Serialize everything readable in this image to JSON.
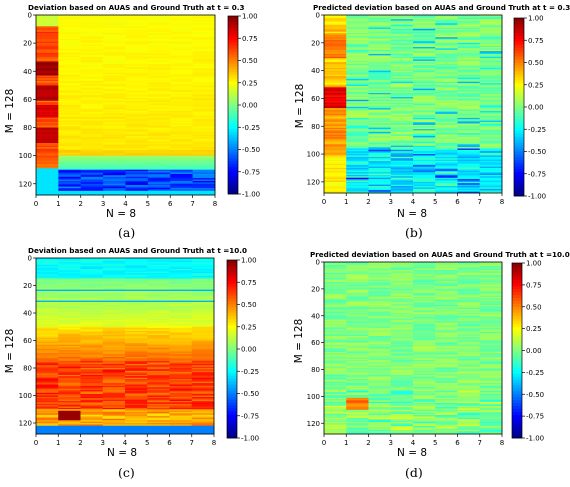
{
  "chart_data": [
    {
      "id": "a",
      "type": "heatmap",
      "title": "Deviation based on AUAS and Ground Truth at t = 0.3",
      "xlabel": "N = 8",
      "ylabel": "M = 128",
      "x_ticks": [
        "0",
        "1",
        "2",
        "3",
        "4",
        "5",
        "6",
        "7",
        "8"
      ],
      "y_ticks": [
        "0",
        "20",
        "40",
        "60",
        "80",
        "100",
        "120"
      ],
      "colorbar_ticks": [
        "1.00",
        "0.75",
        "0.50",
        "0.25",
        "0.00",
        "-0.25",
        "-0.50",
        "-0.75",
        "-1.00"
      ],
      "colorbar_range": [
        -1.0,
        1.0
      ],
      "colormap": "jet",
      "xlim": [
        0,
        8
      ],
      "ylim": [
        128,
        0
      ],
      "caption": "(a)"
    },
    {
      "id": "b",
      "type": "heatmap",
      "title": "Predicted deviation based on AUAS and Ground Truth at t = 0.3",
      "xlabel": "N = 8",
      "ylabel": "M = 128",
      "x_ticks": [
        "0",
        "1",
        "2",
        "3",
        "4",
        "5",
        "6",
        "7",
        "8"
      ],
      "y_ticks": [
        "0",
        "20",
        "40",
        "60",
        "80",
        "100",
        "120"
      ],
      "colorbar_ticks": [
        "1.00",
        "0.75",
        "0.50",
        "0.25",
        "0.00",
        "-0.25",
        "-0.50",
        "-0.75",
        "-1.00"
      ],
      "colorbar_range": [
        -1.0,
        1.0
      ],
      "colormap": "jet",
      "xlim": [
        0,
        8
      ],
      "ylim": [
        128,
        0
      ],
      "caption": "(b)"
    },
    {
      "id": "c",
      "type": "heatmap",
      "title": "Deviation based on AUAS and Ground Truth at t =10.0",
      "xlabel": "N = 8",
      "ylabel": "M = 128",
      "x_ticks": [
        "0",
        "1",
        "2",
        "3",
        "4",
        "5",
        "6",
        "7",
        "8"
      ],
      "y_ticks": [
        "0",
        "20",
        "40",
        "60",
        "80",
        "100",
        "120"
      ],
      "colorbar_ticks": [
        "1.00",
        "0.75",
        "0.50",
        "0.25",
        "0.00",
        "-0.25",
        "-0.50",
        "-0.75",
        "-1.00"
      ],
      "colorbar_range": [
        -1.0,
        1.0
      ],
      "colormap": "jet",
      "xlim": [
        0,
        8
      ],
      "ylim": [
        128,
        0
      ],
      "caption": "(c)"
    },
    {
      "id": "d",
      "type": "heatmap",
      "title": "Predicted deviation based on AUAS and Ground Truth at t =10.0",
      "xlabel": "N = 8",
      "ylabel": "M = 128",
      "x_ticks": [
        "0",
        "1",
        "2",
        "3",
        "4",
        "5",
        "6",
        "7",
        "8"
      ],
      "y_ticks": [
        "0",
        "20",
        "40",
        "60",
        "80",
        "100",
        "120"
      ],
      "colorbar_ticks": [
        "1.00",
        "0.75",
        "0.50",
        "0.25",
        "0.00",
        "-0.25",
        "-0.50",
        "-0.75",
        "-1.00"
      ],
      "colorbar_range": [
        -1.0,
        1.0
      ],
      "colormap": "jet",
      "xlim": [
        0,
        8
      ],
      "ylim": [
        128,
        0
      ],
      "caption": "(d)"
    }
  ]
}
